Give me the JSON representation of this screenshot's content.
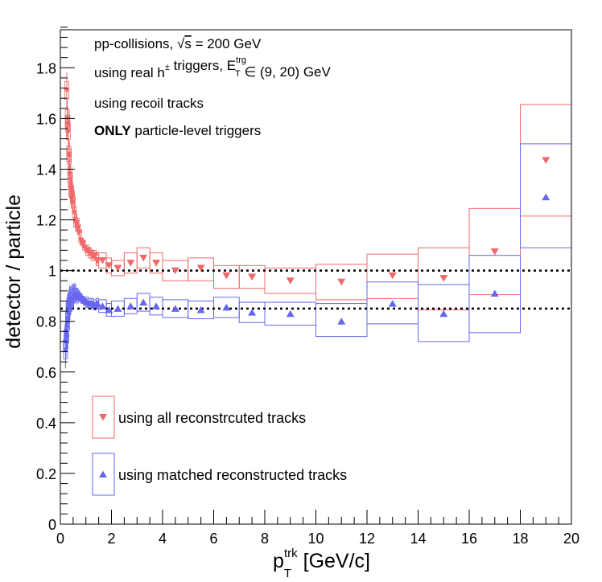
{
  "chart_data": {
    "type": "scatter",
    "title": "",
    "xlabel": "p",
    "xlabel_sub": "T",
    "xlabel_sup": "trk",
    "xlabel_unit": " [GeV/c]",
    "ylabel": "detector / particle",
    "xlim": [
      0,
      20
    ],
    "ylim": [
      0,
      1.95
    ],
    "x_ticks": [
      0,
      2,
      4,
      6,
      8,
      10,
      12,
      14,
      16,
      18,
      20
    ],
    "x_tick_labels": [
      "0",
      "2",
      "4",
      "6",
      "8",
      "10",
      "12",
      "14",
      "16",
      "18",
      "20"
    ],
    "y_ticks": [
      0,
      0.2,
      0.4,
      0.6,
      0.8,
      1,
      1.2,
      1.4,
      1.6,
      1.8
    ],
    "y_tick_labels": [
      "0",
      "0.2",
      "0.4",
      "0.6",
      "0.8",
      "1",
      "1.2",
      "1.4",
      "1.6",
      "1.8"
    ],
    "grid": false,
    "reference_lines": [
      1.0,
      0.85
    ],
    "annotations": [
      {
        "parts": [
          {
            "t": "pp-collisions, "
          },
          {
            "t": "√",
            "style": "normal"
          },
          {
            "t": "s",
            "style": "overline"
          },
          {
            "t": " = 200 GeV"
          }
        ]
      },
      {
        "parts": [
          {
            "t": "using real h"
          },
          {
            "t": "±",
            "style": "sup"
          },
          {
            "t": " triggers, E"
          },
          {
            "t": "trg",
            "style": "sup"
          },
          {
            "t": "T",
            "style": "sub"
          },
          {
            "t": " ∈ (9, 20) GeV"
          }
        ]
      },
      {
        "parts": [
          {
            "t": "using recoil tracks"
          }
        ]
      },
      {
        "parts": [
          {
            "t": "ONLY",
            "style": "bold"
          },
          {
            "t": " particle-level triggers"
          }
        ]
      }
    ],
    "legend_position": "bottom-left",
    "series": [
      {
        "name": "using all reconstrcuted tracks",
        "color": "#f0686a",
        "marker": "triangle-down",
        "low_pt": {
          "x": [
            0.25,
            0.27,
            0.29,
            0.31,
            0.33,
            0.35,
            0.37,
            0.39,
            0.41,
            0.44,
            0.47,
            0.5,
            0.55,
            0.6,
            0.65,
            0.7,
            0.75,
            0.8,
            0.85,
            0.9,
            0.95
          ],
          "y": [
            1.71,
            1.6,
            1.58,
            1.55,
            1.46,
            1.45,
            1.38,
            1.36,
            1.32,
            1.31,
            1.29,
            1.27,
            1.23,
            1.19,
            1.19,
            1.17,
            1.15,
            1.12,
            1.11,
            1.11,
            1.09
          ]
        },
        "points": [
          {
            "x": 1.05,
            "y": 1.08,
            "xlo": 1.0,
            "xhi": 1.1,
            "slo": 1.06,
            "shi": 1.1
          },
          {
            "x": 1.15,
            "y": 1.07,
            "xlo": 1.1,
            "xhi": 1.2,
            "slo": 1.05,
            "shi": 1.09
          },
          {
            "x": 1.25,
            "y": 1.06,
            "xlo": 1.2,
            "xhi": 1.3,
            "slo": 1.04,
            "shi": 1.08
          },
          {
            "x": 1.35,
            "y": 1.06,
            "xlo": 1.3,
            "xhi": 1.4,
            "slo": 1.04,
            "shi": 1.08
          },
          {
            "x": 1.45,
            "y": 1.04,
            "xlo": 1.4,
            "xhi": 1.5,
            "slo": 1.02,
            "shi": 1.06
          },
          {
            "x": 1.65,
            "y": 1.04,
            "xlo": 1.5,
            "xhi": 1.8,
            "slo": 1.01,
            "shi": 1.07
          },
          {
            "x": 1.9,
            "y": 1.02,
            "xlo": 1.8,
            "xhi": 2.0,
            "slo": 0.99,
            "shi": 1.05
          },
          {
            "x": 2.25,
            "y": 1.01,
            "xlo": 2.0,
            "xhi": 2.5,
            "slo": 0.98,
            "shi": 1.04
          },
          {
            "x": 2.75,
            "y": 1.03,
            "xlo": 2.5,
            "xhi": 3.0,
            "slo": 0.99,
            "shi": 1.07
          },
          {
            "x": 3.25,
            "y": 1.05,
            "xlo": 3.0,
            "xhi": 3.5,
            "slo": 1.01,
            "shi": 1.09
          },
          {
            "x": 3.75,
            "y": 1.03,
            "xlo": 3.5,
            "xhi": 4.0,
            "slo": 0.99,
            "shi": 1.07
          },
          {
            "x": 4.5,
            "y": 1.0,
            "xlo": 4.0,
            "xhi": 5.0,
            "slo": 0.96,
            "shi": 1.04
          },
          {
            "x": 5.5,
            "y": 1.01,
            "xlo": 5.0,
            "xhi": 6.0,
            "slo": 0.96,
            "shi": 1.05
          },
          {
            "x": 6.5,
            "y": 0.98,
            "xlo": 6.0,
            "xhi": 7.0,
            "slo": 0.93,
            "shi": 1.02
          },
          {
            "x": 7.5,
            "y": 0.975,
            "xlo": 7.0,
            "xhi": 8.0,
            "slo": 0.93,
            "shi": 1.02
          },
          {
            "x": 9.0,
            "y": 0.96,
            "xlo": 8.0,
            "xhi": 10.0,
            "slo": 0.91,
            "shi": 1.01
          },
          {
            "x": 11.0,
            "y": 0.955,
            "xlo": 10.0,
            "xhi": 12.0,
            "slo": 0.885,
            "shi": 1.025
          },
          {
            "x": 13.0,
            "y": 0.98,
            "xlo": 12.0,
            "xhi": 14.0,
            "slo": 0.89,
            "shi": 1.065
          },
          {
            "x": 15.0,
            "y": 0.97,
            "xlo": 14.0,
            "xhi": 16.0,
            "slo": 0.845,
            "shi": 1.09
          },
          {
            "x": 17.0,
            "y": 1.075,
            "xlo": 16.0,
            "xhi": 18.0,
            "slo": 0.905,
            "shi": 1.245
          },
          {
            "x": 19.0,
            "y": 1.435,
            "xlo": 18.0,
            "xhi": 20.0,
            "slo": 1.215,
            "shi": 1.655
          }
        ]
      },
      {
        "name": "using matched reconstructed tracks",
        "color": "#6666ee",
        "marker": "triangle-up",
        "low_pt": {
          "x": [
            0.2,
            0.22,
            0.25,
            0.28,
            0.3,
            0.33,
            0.36,
            0.4,
            0.44,
            0.48,
            0.52,
            0.56,
            0.6,
            0.65,
            0.7,
            0.75,
            0.8,
            0.85,
            0.9,
            0.95
          ],
          "y": [
            0.69,
            0.73,
            0.75,
            0.8,
            0.84,
            0.86,
            0.88,
            0.88,
            0.89,
            0.9,
            0.9,
            0.91,
            0.91,
            0.9,
            0.9,
            0.9,
            0.89,
            0.89,
            0.88,
            0.88
          ]
        },
        "points": [
          {
            "x": 1.05,
            "y": 0.875,
            "xlo": 1.0,
            "xhi": 1.1,
            "slo": 0.855,
            "shi": 0.895
          },
          {
            "x": 1.15,
            "y": 0.87,
            "xlo": 1.1,
            "xhi": 1.2,
            "slo": 0.85,
            "shi": 0.89
          },
          {
            "x": 1.25,
            "y": 0.87,
            "xlo": 1.2,
            "xhi": 1.3,
            "slo": 0.85,
            "shi": 0.89
          },
          {
            "x": 1.35,
            "y": 0.865,
            "xlo": 1.3,
            "xhi": 1.4,
            "slo": 0.845,
            "shi": 0.885
          },
          {
            "x": 1.45,
            "y": 0.87,
            "xlo": 1.4,
            "xhi": 1.5,
            "slo": 0.85,
            "shi": 0.89
          },
          {
            "x": 1.65,
            "y": 0.86,
            "xlo": 1.5,
            "xhi": 1.8,
            "slo": 0.835,
            "shi": 0.885
          },
          {
            "x": 1.9,
            "y": 0.845,
            "xlo": 1.8,
            "xhi": 2.0,
            "slo": 0.82,
            "shi": 0.87
          },
          {
            "x": 2.25,
            "y": 0.85,
            "xlo": 2.0,
            "xhi": 2.5,
            "slo": 0.82,
            "shi": 0.88
          },
          {
            "x": 2.75,
            "y": 0.86,
            "xlo": 2.5,
            "xhi": 3.0,
            "slo": 0.83,
            "shi": 0.89
          },
          {
            "x": 3.25,
            "y": 0.875,
            "xlo": 3.0,
            "xhi": 3.5,
            "slo": 0.84,
            "shi": 0.91
          },
          {
            "x": 3.75,
            "y": 0.86,
            "xlo": 3.5,
            "xhi": 4.0,
            "slo": 0.825,
            "shi": 0.895
          },
          {
            "x": 4.5,
            "y": 0.85,
            "xlo": 4.0,
            "xhi": 5.0,
            "slo": 0.815,
            "shi": 0.885
          },
          {
            "x": 5.5,
            "y": 0.845,
            "xlo": 5.0,
            "xhi": 6.0,
            "slo": 0.81,
            "shi": 0.88
          },
          {
            "x": 6.5,
            "y": 0.855,
            "xlo": 6.0,
            "xhi": 7.0,
            "slo": 0.815,
            "shi": 0.895
          },
          {
            "x": 7.5,
            "y": 0.835,
            "xlo": 7.0,
            "xhi": 8.0,
            "slo": 0.795,
            "shi": 0.875
          },
          {
            "x": 9.0,
            "y": 0.83,
            "xlo": 8.0,
            "xhi": 10.0,
            "slo": 0.785,
            "shi": 0.875
          },
          {
            "x": 11.0,
            "y": 0.8,
            "xlo": 10.0,
            "xhi": 12.0,
            "slo": 0.74,
            "shi": 0.87
          },
          {
            "x": 13.0,
            "y": 0.87,
            "xlo": 12.0,
            "xhi": 14.0,
            "slo": 0.79,
            "shi": 0.955
          },
          {
            "x": 15.0,
            "y": 0.83,
            "xlo": 14.0,
            "xhi": 16.0,
            "slo": 0.72,
            "shi": 0.945
          },
          {
            "x": 17.0,
            "y": 0.91,
            "xlo": 16.0,
            "xhi": 18.0,
            "slo": 0.755,
            "shi": 1.06
          },
          {
            "x": 19.0,
            "y": 1.29,
            "xlo": 18.0,
            "xhi": 20.0,
            "slo": 1.09,
            "shi": 1.5
          }
        ]
      }
    ]
  }
}
